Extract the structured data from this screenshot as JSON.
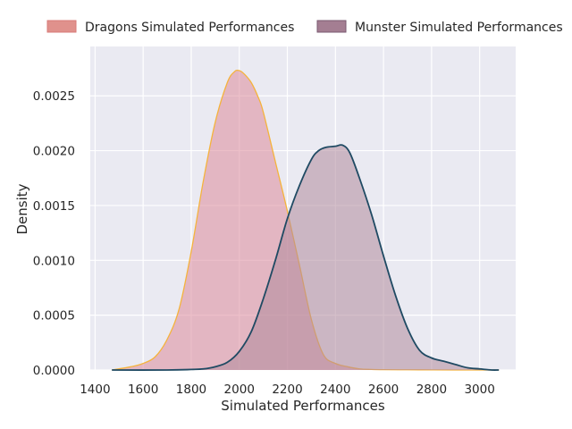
{
  "chart_data": {
    "type": "area",
    "xlabel": "Simulated Performances",
    "ylabel": "Density",
    "xlim": [
      1380,
      3150
    ],
    "ylim": [
      0,
      0.00295
    ],
    "xticks": [
      1400,
      1600,
      1800,
      2000,
      2200,
      2400,
      2600,
      2800,
      3000
    ],
    "xtick_labels": [
      "1400",
      "1600",
      "1800",
      "2000",
      "2200",
      "2400",
      "2600",
      "2800",
      "3000"
    ],
    "yticks": [
      0,
      0.0005,
      0.001,
      0.0015,
      0.002,
      0.0025
    ],
    "ytick_labels": [
      "0.0000",
      "0.0005",
      "0.0010",
      "0.0015",
      "0.0020",
      "0.0025"
    ],
    "grid": true,
    "legend_placement": "top",
    "background": "#eaeaf2",
    "series": [
      {
        "name": "Dragons Simulated Performances",
        "fill": "#dc8a9a",
        "line": "#f5b33c",
        "legend_color": "#e0918c",
        "x": [
          1470,
          1550,
          1600,
          1650,
          1700,
          1750,
          1800,
          1850,
          1900,
          1950,
          1980,
          2000,
          2020,
          2050,
          2080,
          2100,
          2150,
          2200,
          2250,
          2300,
          2350,
          2400,
          2450,
          2500,
          2550,
          2600,
          2700,
          2800,
          2900,
          3000,
          3080
        ],
        "y": [
          0,
          3e-05,
          6e-05,
          0.00012,
          0.00028,
          0.00056,
          0.00108,
          0.00172,
          0.00226,
          0.00262,
          0.00272,
          0.00273,
          0.0027,
          0.00262,
          0.00248,
          0.00235,
          0.0019,
          0.00145,
          0.00096,
          0.00046,
          0.00014,
          6e-05,
          3e-05,
          1e-05,
          5e-06,
          3e-06,
          2e-06,
          1e-06,
          0,
          0,
          0
        ]
      },
      {
        "name": "Munster Simulated Performances",
        "fill": "#b08a9c",
        "line": "#1f4a63",
        "legend_color": "#a47e92",
        "x": [
          1470,
          1700,
          1800,
          1850,
          1900,
          1950,
          2000,
          2050,
          2100,
          2150,
          2200,
          2250,
          2300,
          2330,
          2360,
          2400,
          2430,
          2460,
          2500,
          2550,
          2600,
          2650,
          2700,
          2750,
          2800,
          2850,
          2900,
          2950,
          3000,
          3050,
          3080
        ],
        "y": [
          0,
          0,
          5e-06,
          1e-05,
          3e-05,
          7e-05,
          0.00017,
          0.00035,
          0.00065,
          0.001,
          0.00138,
          0.00168,
          0.00192,
          0.002,
          0.00203,
          0.00204,
          0.00205,
          0.00198,
          0.00175,
          0.00142,
          0.00104,
          0.00068,
          0.00038,
          0.00018,
          0.00011,
          8e-05,
          5e-05,
          2e-05,
          1e-05,
          0,
          0
        ]
      }
    ]
  }
}
